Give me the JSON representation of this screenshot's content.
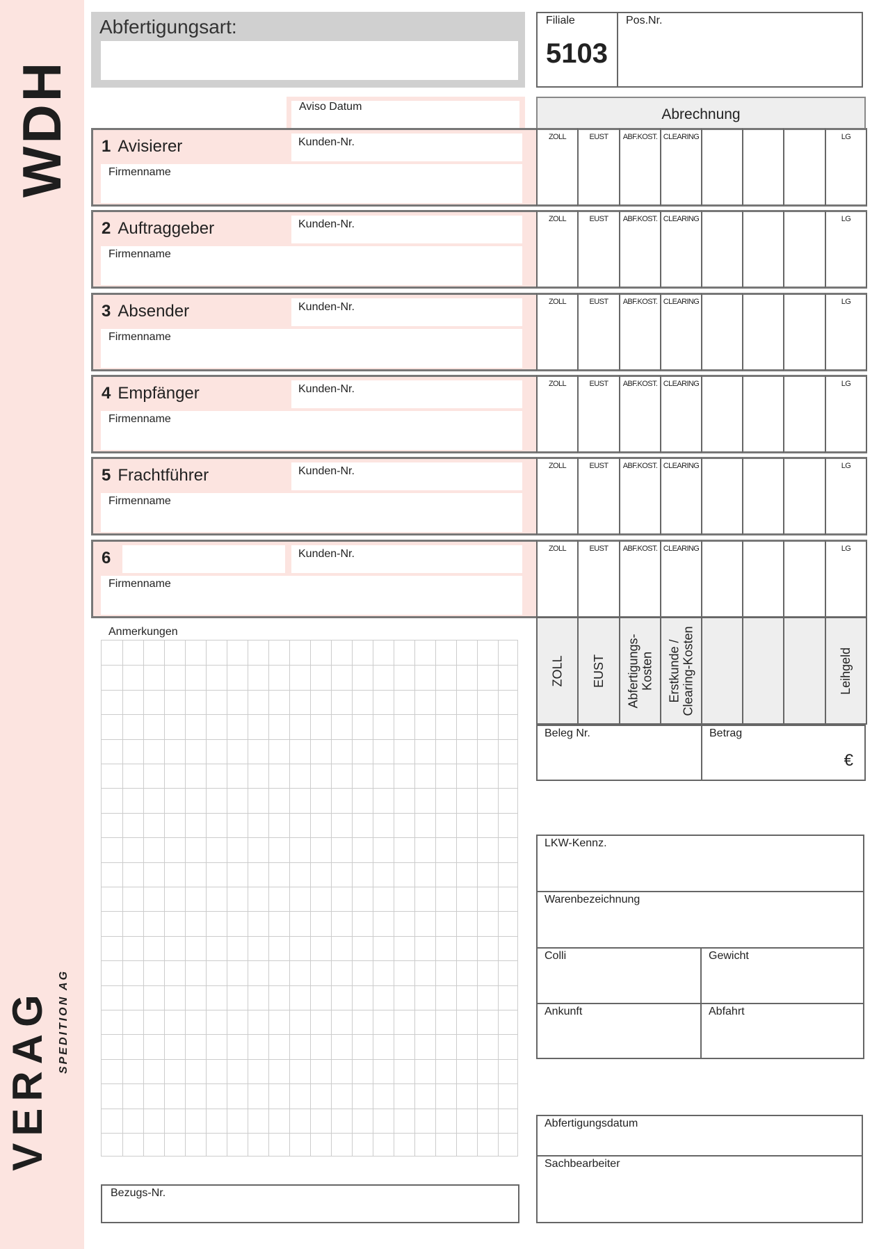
{
  "sidebar": {
    "code": "WDH",
    "logo": "VERAG",
    "logo_sub": "SPEDITION AG",
    "color": "#fce4e0"
  },
  "header": {
    "abfertigungsart_label": "Abfertigungsart:",
    "filiale_label": "Filiale",
    "filiale_value": "5103",
    "posnr_label": "Pos.Nr.",
    "aviso_label": "Aviso Datum",
    "abrechnung_label": "Abrechnung"
  },
  "sections": [
    {
      "num": "1",
      "title": "Avisierer",
      "kunden": "Kunden-Nr.",
      "firma": "Firmenname"
    },
    {
      "num": "2",
      "title": "Auftraggeber",
      "kunden": "Kunden-Nr.",
      "firma": "Firmenname"
    },
    {
      "num": "3",
      "title": "Absender",
      "kunden": "Kunden-Nr.",
      "firma": "Firmenname"
    },
    {
      "num": "4",
      "title": "Empfänger",
      "kunden": "Kunden-Nr.",
      "firma": "Firmenname"
    },
    {
      "num": "5",
      "title": "Frachtführer",
      "kunden": "Kunden-Nr.",
      "firma": "Firmenname"
    },
    {
      "num": "6",
      "title": "",
      "kunden": "Kunden-Nr.",
      "firma": "Firmenname"
    }
  ],
  "columns_short": [
    "ZOLL",
    "EUST",
    "ABF.KOST.",
    "CLEARING",
    "",
    "",
    "",
    "LG"
  ],
  "columns_long": [
    "ZOLL",
    "EUST",
    "Abfertigungs-\nKosten",
    "Erstkunde /\nClearing-Kosten",
    "",
    "",
    "",
    "Leihgeld"
  ],
  "beleg_label": "Beleg Nr.",
  "betrag_label": "Betrag",
  "currency": "€",
  "anmerkungen_label": "Anmerkungen",
  "bezugs_label": "Bezugs-Nr.",
  "transport": {
    "lkw": "LKW-Kennz.",
    "waren": "Warenbezeichnung",
    "colli": "Colli",
    "gewicht": "Gewicht",
    "ankunft": "Ankunft",
    "abfahrt": "Abfahrt"
  },
  "footer": {
    "datum": "Abfertigungsdatum",
    "bearbeiter": "Sachbearbeiter"
  }
}
